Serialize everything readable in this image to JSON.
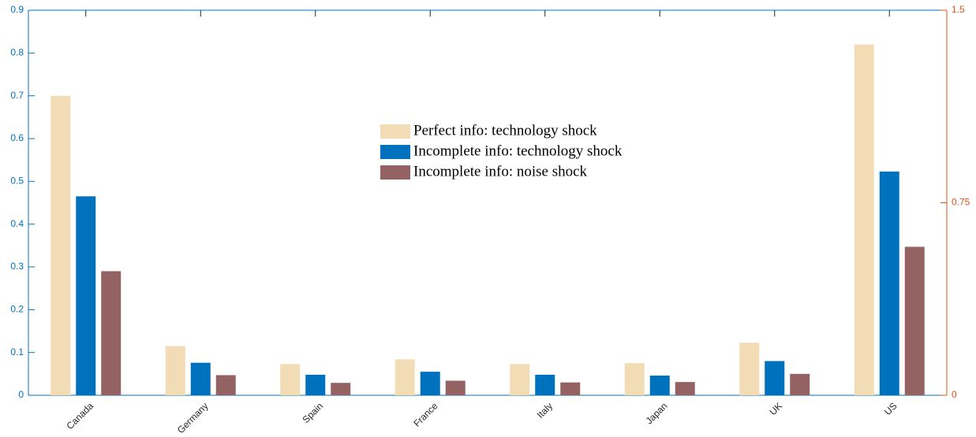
{
  "chart_data": {
    "type": "bar",
    "categories": [
      "Canada",
      "Germany",
      "Spain",
      "France",
      "Italy",
      "Japan",
      "UK",
      "US"
    ],
    "series": [
      {
        "name": "Perfect info: technology shock",
        "color": "#f2dcb5",
        "values": [
          0.7,
          0.115,
          0.073,
          0.084,
          0.073,
          0.075,
          0.123,
          0.82
        ]
      },
      {
        "name": "Incomplete info: technology shock",
        "color": "#0072bd",
        "values": [
          0.465,
          0.076,
          0.048,
          0.055,
          0.048,
          0.046,
          0.08,
          0.523
        ]
      },
      {
        "name": "Incomplete info: noise shock",
        "color": "#946262",
        "values": [
          0.29,
          0.047,
          0.029,
          0.034,
          0.03,
          0.031,
          0.05,
          0.347
        ]
      }
    ],
    "ylim": [
      0,
      0.9
    ],
    "yticks": [
      0,
      0.1,
      0.2,
      0.3,
      0.4,
      0.5,
      0.6,
      0.7,
      0.8,
      0.9
    ],
    "y2lim": [
      0,
      1.5
    ],
    "y2ticks": [
      0,
      0.75,
      1.5
    ],
    "y_axis_color": "#0072bd",
    "y2_axis_color": "#d95319",
    "legend": "upper-center",
    "grid": false
  }
}
